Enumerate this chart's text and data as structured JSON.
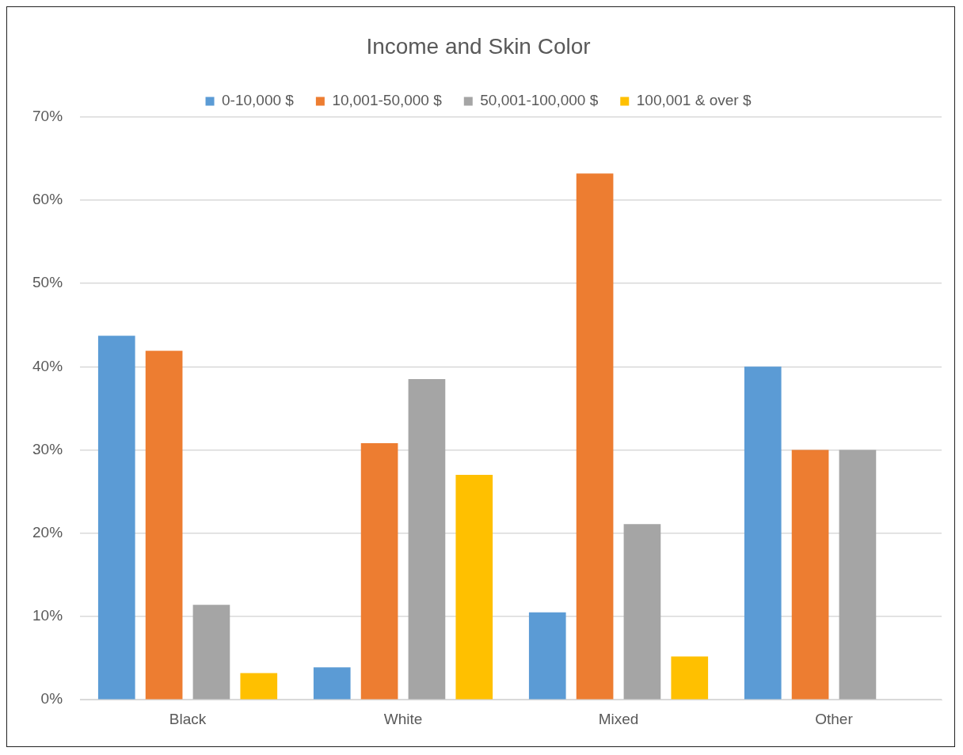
{
  "chart_data": {
    "type": "bar",
    "title": "Income and Skin Color",
    "categories": [
      "Black",
      "White",
      "Mixed",
      "Other"
    ],
    "series": [
      {
        "name": "0-10,000 $",
        "color": "#5b9bd5",
        "values": [
          43.7,
          3.9,
          10.5,
          40.0
        ]
      },
      {
        "name": "10,001-50,000 $",
        "color": "#ed7d31",
        "values": [
          41.9,
          30.8,
          63.2,
          30.0
        ]
      },
      {
        "name": "50,001-100,000 $",
        "color": "#a5a5a5",
        "values": [
          11.4,
          38.5,
          21.1,
          30.0
        ]
      },
      {
        "name": "100,001 & over $",
        "color": "#ffc000",
        "values": [
          3.2,
          27.0,
          5.2,
          0
        ]
      }
    ],
    "ylim": [
      0,
      70
    ],
    "yticks": [
      {
        "value": 0,
        "label": "0%"
      },
      {
        "value": 10,
        "label": "10%"
      },
      {
        "value": 20,
        "label": "20%"
      },
      {
        "value": 30,
        "label": "30%"
      },
      {
        "value": 40,
        "label": "40%"
      },
      {
        "value": 50,
        "label": "50%"
      },
      {
        "value": 60,
        "label": "60%"
      },
      {
        "value": 70,
        "label": "70%"
      }
    ],
    "grid": "y",
    "legend": "top"
  }
}
